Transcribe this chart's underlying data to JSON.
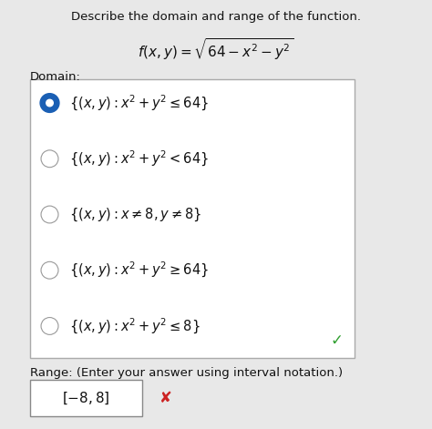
{
  "title": "Describe the domain and range of the function.",
  "domain_label": "Domain:",
  "options": [
    {
      "text": "$\\{(x, y): x^2 + y^2 \\leq 64\\}$",
      "selected": true
    },
    {
      "text": "$\\{(x, y): x^2 + y^2 < 64\\}$",
      "selected": false
    },
    {
      "text": "$\\{(x, y): x \\neq 8, y \\neq 8\\}$",
      "selected": false
    },
    {
      "text": "$\\{(x, y): x^2 + y^2 \\geq 64\\}$",
      "selected": false
    },
    {
      "text": "$\\{(x, y): x^2 + y^2 \\leq 8\\}$",
      "selected": false
    }
  ],
  "range_label": "Range: (Enter your answer using interval notation.)",
  "range_answer": "$[-8,8]$",
  "bg_color": "#e8e8e8",
  "box_color": "#ffffff",
  "border_color": "#aaaaaa",
  "selected_dot_color": "#1a5fb4",
  "unselected_dot_color": "#999999",
  "check_color": "#2e9e2e",
  "x_mark_color": "#cc2222",
  "text_color": "#111111",
  "range_box_border": "#888888",
  "title_fontsize": 9.5,
  "func_fontsize": 11,
  "option_fontsize": 10.5,
  "label_fontsize": 9.5
}
